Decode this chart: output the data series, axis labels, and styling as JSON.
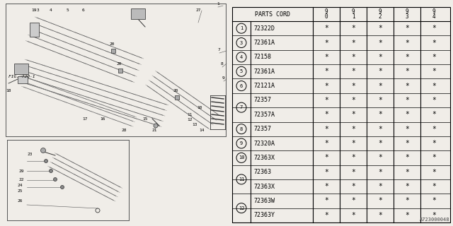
{
  "bg_color": "#f0ede8",
  "table_bg": "#f0ede8",
  "parts_cord_header": "PARTS CORD",
  "year_cols": [
    "9\n0",
    "9\n1",
    "9\n2",
    "9\n3",
    "9\n4"
  ],
  "rows": [
    {
      "num": "1",
      "code": "72322D",
      "vals": [
        "*",
        "*",
        "*",
        "*",
        "*"
      ],
      "span": 1
    },
    {
      "num": "3",
      "code": "72361A",
      "vals": [
        "*",
        "*",
        "*",
        "*",
        "*"
      ],
      "span": 1
    },
    {
      "num": "4",
      "code": "72158",
      "vals": [
        "*",
        "*",
        "*",
        "*",
        "*"
      ],
      "span": 1
    },
    {
      "num": "5",
      "code": "72361A",
      "vals": [
        "*",
        "*",
        "*",
        "*",
        "*"
      ],
      "span": 1
    },
    {
      "num": "6",
      "code": "72121A",
      "vals": [
        "*",
        "*",
        "*",
        "*",
        "*"
      ],
      "span": 1
    },
    {
      "num": "7",
      "code": "72357",
      "vals": [
        "*",
        "*",
        "*",
        "*",
        "*"
      ],
      "span": 2
    },
    {
      "num": "",
      "code": "72357A",
      "vals": [
        "*",
        "*",
        "*",
        "*",
        "*"
      ],
      "span": 0
    },
    {
      "num": "8",
      "code": "72357",
      "vals": [
        "*",
        "*",
        "*",
        "*",
        "*"
      ],
      "span": 1
    },
    {
      "num": "9",
      "code": "72320A",
      "vals": [
        "*",
        "*",
        "*",
        "*",
        "*"
      ],
      "span": 1
    },
    {
      "num": "10",
      "code": "72363X",
      "vals": [
        "*",
        "*",
        "*",
        "*",
        "*"
      ],
      "span": 1
    },
    {
      "num": "11",
      "code": "72363",
      "vals": [
        "*",
        "*",
        "*",
        "*",
        "*"
      ],
      "span": 2
    },
    {
      "num": "",
      "code": "72363X",
      "vals": [
        "*",
        "*",
        "*",
        "*",
        "*"
      ],
      "span": 0
    },
    {
      "num": "12",
      "code": "72363W",
      "vals": [
        "*",
        "*",
        "*",
        "*",
        "*"
      ],
      "span": 2
    },
    {
      "num": "",
      "code": "72363Y",
      "vals": [
        "*",
        "*",
        "*",
        "*",
        "*"
      ],
      "span": 0
    }
  ],
  "fig_label": "FIG. 720-1",
  "watermark": "A723000048",
  "lc": "#000000",
  "fc": "#000000"
}
